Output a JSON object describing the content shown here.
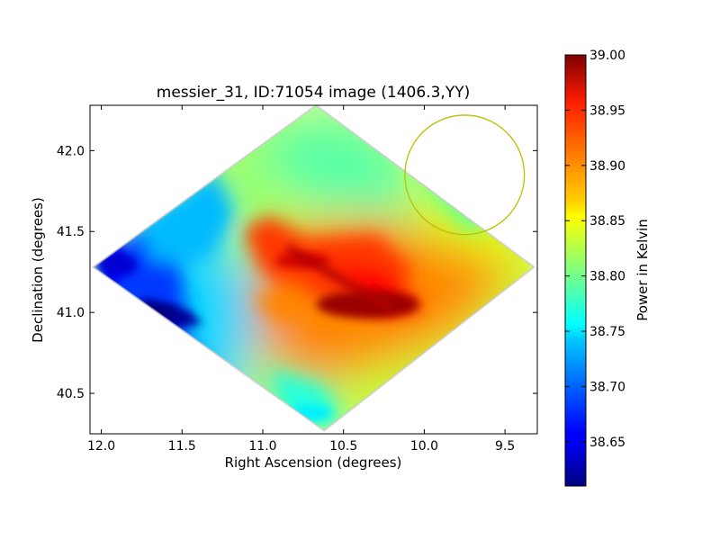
{
  "chart_data": {
    "type": "heatmap",
    "title": "messier_31, ID:71054 image (1406.3,YY)",
    "xlabel": "Right Ascension (degrees)",
    "ylabel": "Declination (degrees)",
    "xlim": [
      12.07,
      9.3
    ],
    "ylim": [
      40.25,
      42.28
    ],
    "x_ticks": [
      12.0,
      11.5,
      11.0,
      10.5,
      10.0,
      9.5
    ],
    "x_tick_labels": [
      "12.0",
      "11.5",
      "11.0",
      "10.5",
      "10.0",
      "9.5"
    ],
    "y_ticks": [
      40.5,
      41.0,
      41.5,
      42.0
    ],
    "y_tick_labels": [
      "40.5",
      "41.0",
      "41.5",
      "42.0"
    ],
    "region_corners": [
      {
        "ra": 10.67,
        "dec": 42.28
      },
      {
        "ra": 9.32,
        "dec": 41.28
      },
      {
        "ra": 10.62,
        "dec": 40.27
      },
      {
        "ra": 12.05,
        "dec": 41.28
      }
    ],
    "features": [
      {
        "kind": "peak",
        "ra": 10.35,
        "dec": 41.05,
        "value": 38.99
      },
      {
        "kind": "peak",
        "ra": 10.75,
        "dec": 41.32,
        "value": 38.97
      },
      {
        "kind": "minimum",
        "ra": 11.65,
        "dec": 41.0,
        "value": 38.61
      },
      {
        "kind": "minimum",
        "ra": 11.9,
        "dec": 41.3,
        "value": 38.64
      },
      {
        "kind": "minimum",
        "ra": 10.7,
        "dec": 40.38,
        "value": 38.75
      }
    ],
    "beam_circle": {
      "ra": 9.75,
      "dec": 41.85,
      "radius_deg": 0.37,
      "color": "#bfbf00"
    },
    "colorbar": {
      "label": "Power in Kelvin",
      "range": [
        38.61,
        39.0
      ],
      "ticks": [
        38.65,
        38.7,
        38.75,
        38.8,
        38.85,
        38.9,
        38.95,
        39.0
      ],
      "tick_labels": [
        "38.65",
        "38.70",
        "38.75",
        "38.80",
        "38.85",
        "38.90",
        "38.95",
        "39.00"
      ],
      "colormap": "jet"
    },
    "grid": false
  }
}
